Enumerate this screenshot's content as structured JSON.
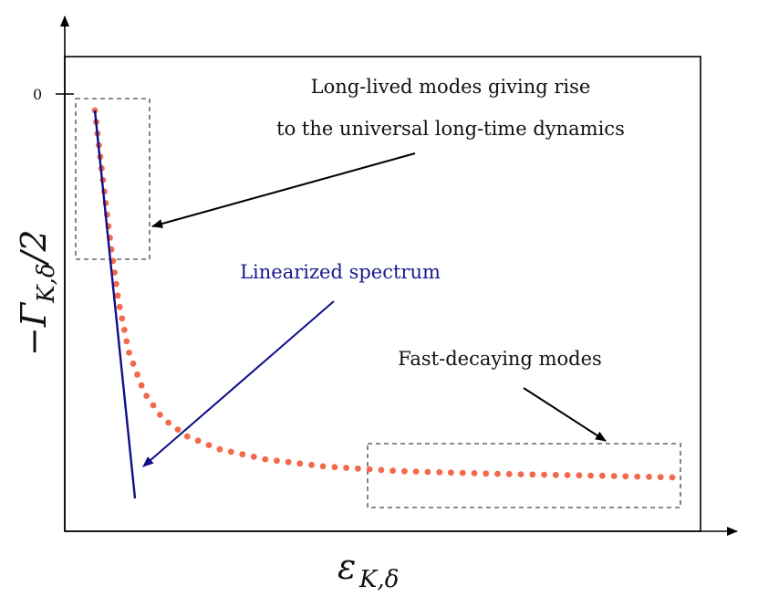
{
  "chart_data": {
    "type": "scatter",
    "title": "",
    "xlabel": {
      "main": "ε",
      "sub": "K,δ"
    },
    "ylabel": {
      "main": "−Γ",
      "sub": "K,δ",
      "tail": "/2"
    },
    "y_tick_labels": [
      "0"
    ],
    "grid": false,
    "series": [
      {
        "kind": "dots",
        "color": "#f26a4b",
        "shape": "hyperbolic decay from (x=0, y=0) toward a plateau near the bottom-right",
        "count": 73
      },
      {
        "kind": "line",
        "color": "#0f0f8a",
        "role": "linear fit through the first modes"
      }
    ],
    "annotations": {
      "long_lived_line1": "Long-lived modes giving rise",
      "long_lived_line2": "to the universal long-time dynamics",
      "linearized": "Linearized spectrum",
      "fast_decaying": "Fast-decaying modes"
    },
    "colors": {
      "dots": "#f26a4b",
      "fit_line": "#0f0f8a",
      "highlight_box": "#666666",
      "axes": "#000000"
    }
  }
}
